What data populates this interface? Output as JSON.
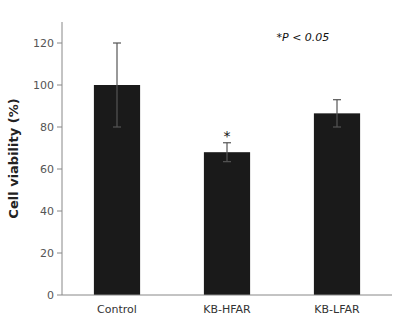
{
  "chart_data": {
    "type": "bar",
    "categories": [
      "Control",
      "KB-HFAR",
      "KB-LFAR"
    ],
    "values": [
      100.0,
      68.0,
      86.5
    ],
    "errors": [
      20.0,
      4.5,
      6.5
    ],
    "color": "#1a1a1a",
    "ylabel": "Cell viability (%)",
    "ylim": [
      0,
      130
    ],
    "yticks": [
      0,
      20,
      40,
      60,
      80,
      100,
      120
    ],
    "grid": false,
    "annotations": [
      {
        "text": "*P < 0.05"
      },
      {
        "text": "*",
        "category": "KB-HFAR",
        "y": 73.5
      }
    ]
  }
}
